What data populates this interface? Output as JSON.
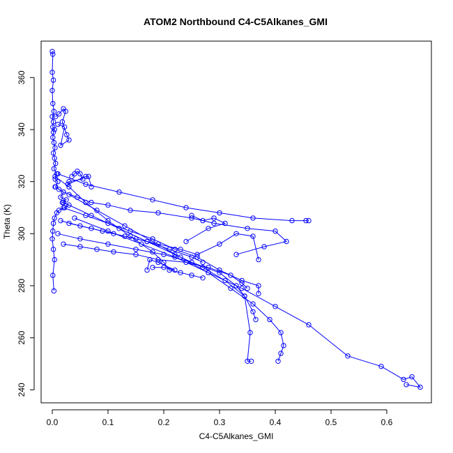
{
  "chart_data": {
    "type": "scatter",
    "title": "ATOM2 Northbound C4-C5Alkanes_GMI",
    "xlabel": "C4-C5Alkanes_GMI",
    "ylabel": "Theta (K)",
    "xlim": [
      -0.02,
      0.68
    ],
    "ylim": [
      235,
      374
    ],
    "x_ticks": [
      0.0,
      0.1,
      0.2,
      0.3,
      0.4,
      0.5,
      0.6
    ],
    "x_tick_labels": [
      "0.0",
      "0.1",
      "0.2",
      "0.3",
      "0.4",
      "0.5",
      "0.6"
    ],
    "y_ticks": [
      240,
      260,
      280,
      300,
      320,
      340,
      360
    ],
    "y_tick_labels": [
      "240",
      "260",
      "280",
      "300",
      "320",
      "340",
      "360"
    ],
    "grid": false,
    "legend": "none",
    "marker": "open-circle",
    "connected": true,
    "color": "#0000ff",
    "series": [
      {
        "x": [
          0.0,
          0.001,
          0.0,
          0.002,
          0.0,
          0.001,
          0.003,
          0.0,
          0.002,
          0.001,
          0.004,
          0.002,
          0.001,
          0.003,
          0.005,
          0.002,
          0.004,
          0.006,
          0.003,
          0.008,
          0.005,
          0.01,
          0.006,
          0.012,
          0.02,
          0.015,
          0.025,
          0.018,
          0.03,
          0.022,
          0.012,
          0.008,
          0.004,
          0.002,
          0.001,
          0.0,
          0.002,
          0.004,
          0.001,
          0.003
        ],
        "y": [
          370,
          369,
          362,
          359,
          355,
          350,
          347,
          345,
          343,
          341,
          340,
          339,
          337,
          335,
          333,
          331,
          329,
          327,
          325,
          323,
          321,
          320,
          318,
          317,
          316,
          314,
          313,
          312,
          311,
          310,
          309,
          308,
          306,
          304,
          301,
          298,
          294,
          290,
          284,
          278
        ]
      },
      {
        "x": [
          0.005,
          0.02,
          0.045,
          0.07,
          0.1,
          0.14,
          0.19,
          0.25,
          0.29,
          0.35,
          0.4,
          0.42,
          0.38,
          0.33
        ],
        "y": [
          318,
          316,
          314,
          312,
          311,
          309,
          308,
          306,
          304,
          302,
          301,
          297,
          295,
          292
        ]
      },
      {
        "x": [
          0.01,
          0.06,
          0.12,
          0.18,
          0.24,
          0.3,
          0.36,
          0.43,
          0.46,
          0.455
        ],
        "y": [
          323,
          319,
          316,
          313,
          310,
          308,
          306,
          305,
          305,
          305
        ]
      },
      {
        "x": [
          0.015,
          0.05,
          0.09,
          0.13,
          0.17,
          0.21,
          0.25,
          0.27
        ],
        "y": [
          305,
          303,
          301,
          299,
          297,
          294,
          291,
          289
        ]
      },
      {
        "x": [
          0.02,
          0.06,
          0.1,
          0.14,
          0.18,
          0.22,
          0.26,
          0.3,
          0.34,
          0.37,
          0.37
        ],
        "y": [
          310,
          307,
          304,
          301,
          298,
          294,
          291,
          286,
          282,
          280,
          277
        ]
      },
      {
        "x": [
          0.01,
          0.05,
          0.1,
          0.15,
          0.2,
          0.25,
          0.3,
          0.33,
          0.345,
          0.36,
          0.365
        ],
        "y": [
          300,
          298,
          296,
          294,
          292,
          289,
          285,
          280,
          276,
          270,
          267
        ]
      },
      {
        "x": [
          0.02,
          0.07,
          0.12,
          0.17,
          0.22,
          0.27,
          0.31,
          0.345,
          0.355,
          0.35,
          0.357
        ],
        "y": [
          312,
          307,
          302,
          297,
          292,
          287,
          282,
          276,
          262,
          251,
          251
        ]
      },
      {
        "x": [
          0.03,
          0.08,
          0.13,
          0.18,
          0.23,
          0.28,
          0.32,
          0.36,
          0.39,
          0.41,
          0.415,
          0.41,
          0.405
        ],
        "y": [
          315,
          309,
          303,
          297,
          291,
          285,
          279,
          273,
          267,
          262,
          257,
          254,
          251
        ]
      },
      {
        "x": [
          0.04,
          0.1,
          0.16,
          0.22,
          0.28,
          0.34,
          0.4,
          0.46,
          0.53,
          0.59,
          0.63,
          0.645,
          0.66,
          0.635
        ],
        "y": [
          306,
          301,
          296,
          291,
          285,
          279,
          272,
          265,
          253,
          249,
          244,
          245,
          241,
          242
        ]
      },
      {
        "x": [
          0.005,
          0.03,
          0.06,
          0.1,
          0.14,
          0.18,
          0.2,
          0.21,
          0.23,
          0.25,
          0.27
        ],
        "y": [
          322,
          318,
          312,
          305,
          299,
          293,
          289,
          286,
          285,
          284,
          283
        ]
      },
      {
        "x": [
          0.02,
          0.05,
          0.08,
          0.11,
          0.15,
          0.19,
          0.24,
          0.28,
          0.32,
          0.34,
          0.35
        ],
        "y": [
          296,
          295,
          294,
          293,
          292,
          290,
          289,
          287,
          284,
          281,
          279
        ]
      },
      {
        "x": [
          0.03,
          0.07,
          0.11,
          0.15,
          0.19,
          0.23,
          0.26,
          0.3,
          0.33,
          0.36,
          0.37
        ],
        "y": [
          304,
          302,
          300,
          298,
          296,
          294,
          292,
          296,
          300,
          299,
          290
        ]
      },
      {
        "x": [
          0.006,
          0.012,
          0.02,
          0.024,
          0.018,
          0.026,
          0.03,
          0.015,
          0.022,
          0.01
        ],
        "y": [
          345,
          346,
          348,
          347,
          343,
          338,
          336,
          334,
          341,
          342
        ]
      },
      {
        "x": [
          0.035,
          0.04,
          0.045,
          0.05,
          0.055,
          0.03,
          0.028,
          0.06,
          0.065,
          0.07
        ],
        "y": [
          322,
          323,
          324,
          323,
          321,
          320,
          319,
          322,
          322,
          318
        ]
      },
      {
        "x": [
          0.25,
          0.27,
          0.29,
          0.31,
          0.28,
          0.24
        ],
        "y": [
          307,
          305,
          306,
          304,
          302,
          297
        ]
      },
      {
        "x": [
          0.18,
          0.2,
          0.22,
          0.19,
          0.175,
          0.17
        ],
        "y": [
          287,
          287,
          286,
          289,
          290,
          286
        ]
      }
    ]
  }
}
